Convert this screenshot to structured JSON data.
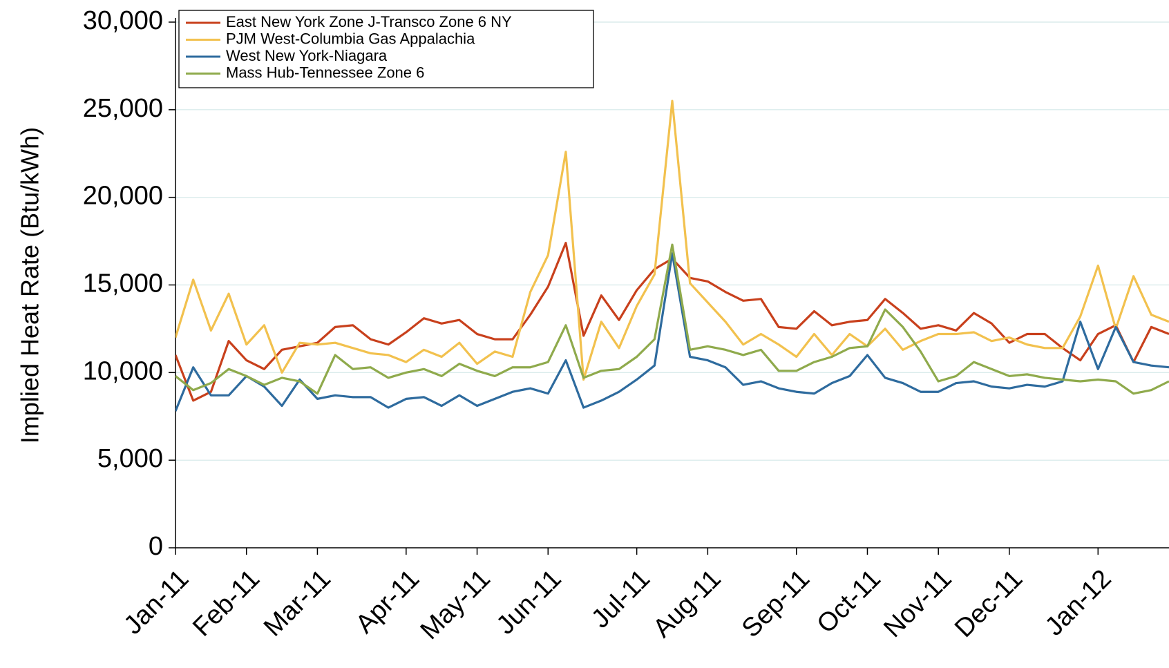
{
  "chart_data": {
    "type": "line",
    "y_label": "Implied Heat Rate (Btu/kWh)",
    "categories": [
      "Jan-11",
      null,
      null,
      null,
      "Feb-11",
      null,
      null,
      null,
      "Mar-11",
      null,
      null,
      null,
      null,
      "Apr-11",
      null,
      null,
      null,
      "May-11",
      null,
      null,
      null,
      "Jun-11",
      null,
      null,
      null,
      null,
      "Jul-11",
      null,
      null,
      null,
      "Aug-11",
      null,
      null,
      null,
      null,
      "Sep-11",
      null,
      null,
      null,
      "Oct-11",
      null,
      null,
      null,
      "Nov-11",
      null,
      null,
      null,
      "Dec-11",
      null,
      null,
      null,
      null,
      "Jan-12",
      null,
      null,
      null,
      null
    ],
    "series": [
      {
        "name": "East New York Zone J-Transco Zone 6 NY",
        "color": "#c8401c",
        "values": [
          11000,
          8400,
          8900,
          11800,
          10700,
          10200,
          11300,
          11500,
          11700,
          12600,
          12700,
          11900,
          11600,
          12300,
          13100,
          12800,
          13000,
          12200,
          11900,
          11900,
          13300,
          14900,
          17400,
          12100,
          14400,
          13000,
          14700,
          15900,
          16500,
          15400,
          15200,
          14600,
          14100,
          14200,
          12600,
          12500,
          13500,
          12700,
          12900,
          13000,
          14200,
          13400,
          12500,
          12700,
          12400,
          13400,
          12800,
          11700,
          12200,
          12200,
          11400,
          10700,
          12200,
          12700,
          10600,
          12600,
          12200
        ]
      },
      {
        "name": "PJM West-Columbia Gas Appalachia",
        "color": "#f2c14e",
        "values": [
          12000,
          15300,
          12400,
          14500,
          11600,
          12700,
          10000,
          11700,
          11600,
          11700,
          11400,
          11100,
          11000,
          10600,
          11300,
          10900,
          11700,
          10500,
          11200,
          10900,
          14600,
          16700,
          22600,
          9600,
          12900,
          11400,
          13800,
          15600,
          25500,
          15100,
          14000,
          12900,
          11600,
          12200,
          11600,
          10900,
          12200,
          11000,
          12200,
          11500,
          12500,
          11300,
          11800,
          12200,
          12200,
          12300,
          11800,
          12000,
          11600,
          11400,
          11400,
          13200,
          16100,
          12500,
          15500,
          13300,
          12900
        ]
      },
      {
        "name": "West New York-Niagara",
        "color": "#2e6b9e",
        "values": [
          7800,
          10300,
          8700,
          8700,
          9800,
          9200,
          8100,
          9600,
          8500,
          8700,
          8600,
          8600,
          8000,
          8500,
          8600,
          8100,
          8700,
          8100,
          8500,
          8900,
          9100,
          8800,
          10700,
          8000,
          8400,
          8900,
          9600,
          10400,
          16800,
          10900,
          10700,
          10300,
          9300,
          9500,
          9100,
          8900,
          8800,
          9400,
          9800,
          11000,
          9700,
          9400,
          8900,
          8900,
          9400,
          9500,
          9200,
          9100,
          9300,
          9200,
          9500,
          12900,
          10200,
          12600,
          10600,
          10400,
          10300
        ]
      },
      {
        "name": "Mass Hub-Tennessee Zone 6",
        "color": "#8faa4c",
        "values": [
          9800,
          9000,
          9400,
          10200,
          9800,
          9300,
          9700,
          9500,
          8800,
          11000,
          10200,
          10300,
          9700,
          10000,
          10200,
          9800,
          10500,
          10100,
          9800,
          10300,
          10300,
          10600,
          12700,
          9700,
          10100,
          10200,
          10900,
          11900,
          17300,
          11300,
          11500,
          11300,
          11000,
          11300,
          10100,
          10100,
          10600,
          10900,
          11400,
          11500,
          13600,
          12600,
          11200,
          9500,
          9800,
          10600,
          10200,
          9800,
          9900,
          9700,
          9600,
          9500,
          9600,
          9500,
          8800,
          9000,
          9500
        ]
      }
    ],
    "ylim": [
      0,
      30000
    ],
    "yticks": [
      {
        "value": 0,
        "label": "0"
      },
      {
        "value": 5000,
        "label": "5,000"
      },
      {
        "value": 10000,
        "label": "10,000"
      },
      {
        "value": 15000,
        "label": "15,000"
      },
      {
        "value": 20000,
        "label": "20,000"
      },
      {
        "value": 25000,
        "label": "25,000"
      },
      {
        "value": 30000,
        "label": "30,000"
      }
    ],
    "grid": true,
    "legend": "upper left"
  }
}
